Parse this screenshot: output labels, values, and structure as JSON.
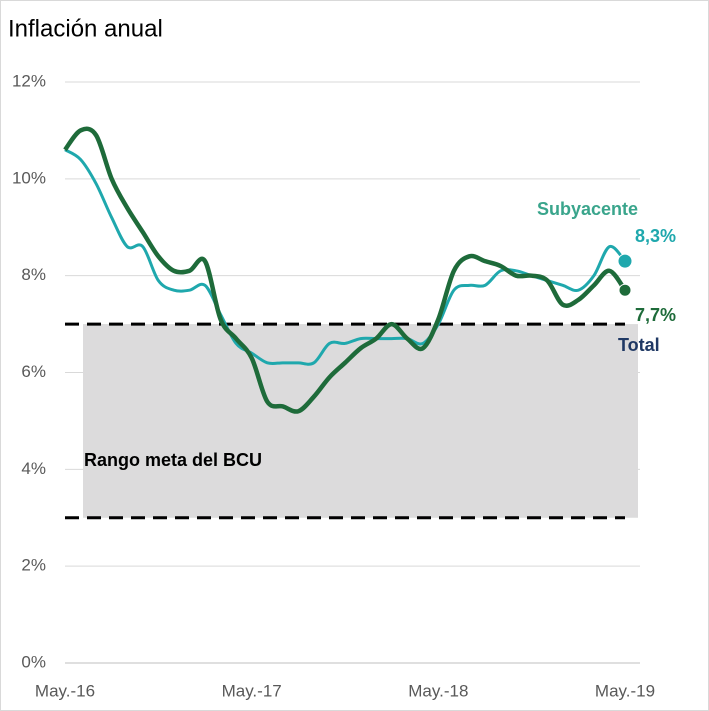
{
  "chart_data": {
    "type": "line",
    "title": "Inflación anual",
    "categories": [
      "May.-16",
      null,
      null,
      null,
      null,
      null,
      null,
      null,
      null,
      null,
      null,
      null,
      "May.-17",
      null,
      null,
      null,
      null,
      null,
      null,
      null,
      null,
      null,
      null,
      null,
      "May.-18",
      null,
      null,
      null,
      null,
      null,
      null,
      null,
      null,
      null,
      null,
      null,
      "May.-19"
    ],
    "series": [
      {
        "name": "Total",
        "color": "#1e6b3a",
        "label_color": "#1f3864",
        "value_label_color": "#1e6b3a",
        "values": [
          10.6,
          11.0,
          10.9,
          10.0,
          9.4,
          8.9,
          8.4,
          8.1,
          8.1,
          8.3,
          7.1,
          6.7,
          6.3,
          5.4,
          5.3,
          5.2,
          5.5,
          5.9,
          6.2,
          6.5,
          6.7,
          7.0,
          6.7,
          6.5,
          7.1,
          8.1,
          8.4,
          8.3,
          8.2,
          8.0,
          8.0,
          7.9,
          7.4,
          7.5,
          7.8,
          8.1,
          7.7
        ],
        "value_labels": [
          null,
          null,
          null,
          null,
          null,
          null,
          null,
          null,
          null,
          null,
          null,
          null,
          null,
          null,
          null,
          null,
          null,
          null,
          null,
          null,
          null,
          null,
          null,
          null,
          null,
          null,
          null,
          null,
          null,
          null,
          null,
          null,
          null,
          null,
          null,
          null,
          "7,7%"
        ]
      },
      {
        "name": "Subyacente",
        "color": "#1fa8ad",
        "label_color": "#3aa58c",
        "value_label_color": "#1fa8ad",
        "values": [
          10.6,
          10.4,
          9.9,
          9.2,
          8.6,
          8.6,
          7.9,
          7.7,
          7.7,
          7.8,
          7.2,
          6.6,
          6.4,
          6.2,
          6.2,
          6.2,
          6.2,
          6.6,
          6.6,
          6.7,
          6.7,
          6.7,
          6.7,
          6.6,
          7.0,
          7.7,
          7.8,
          7.8,
          8.1,
          8.1,
          8.0,
          7.9,
          7.8,
          7.7,
          8.0,
          8.6,
          8.3
        ],
        "value_labels": [
          null,
          null,
          null,
          null,
          null,
          null,
          null,
          null,
          null,
          null,
          null,
          null,
          null,
          null,
          null,
          null,
          null,
          null,
          null,
          null,
          null,
          null,
          null,
          null,
          null,
          null,
          null,
          null,
          null,
          null,
          null,
          null,
          null,
          null,
          null,
          null,
          "8,3%"
        ]
      }
    ],
    "target_range": {
      "label": "Rango meta del BCU",
      "values": [
        3,
        7
      ],
      "color": "#dcdbdc"
    },
    "ylim": [
      0,
      12
    ],
    "yticks": [
      {
        "value": 0,
        "label": "0%"
      },
      {
        "value": 2,
        "label": "2%"
      },
      {
        "value": 4,
        "label": "4%"
      },
      {
        "value": 6,
        "label": "6%"
      },
      {
        "value": 8,
        "label": "8%"
      },
      {
        "value": 10,
        "label": "10%"
      },
      {
        "value": 12,
        "label": "12%"
      }
    ],
    "grid": true
  }
}
